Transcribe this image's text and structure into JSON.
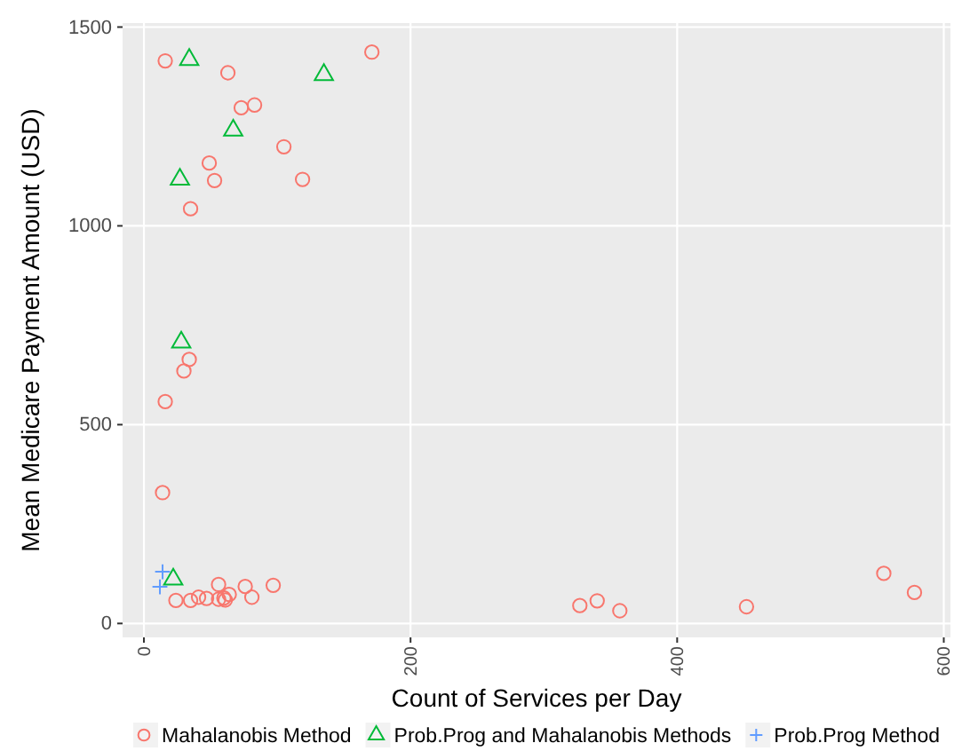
{
  "chart_data": {
    "type": "scatter",
    "xlabel": "Count of Services per Day",
    "ylabel": "Mean Medicare Payment Amount (USD)",
    "xlim": [
      -16,
      605
    ],
    "ylim": [
      -35,
      1510
    ],
    "xticks": [
      0,
      200,
      400,
      600
    ],
    "yticks": [
      0,
      500,
      1000,
      1500
    ],
    "grid": true,
    "legend": "bottom",
    "series": [
      {
        "name": "Mahalanobis Method",
        "color": "#f8766d",
        "marker": "circle",
        "x": [
          16,
          63,
          171,
          73,
          83,
          105,
          49,
          53,
          119,
          35,
          34,
          30,
          16,
          14,
          24,
          35,
          41,
          47,
          56,
          56,
          60,
          61,
          64,
          76,
          81,
          97,
          327,
          340,
          357,
          452,
          555,
          578
        ],
        "values": [
          1415,
          1385,
          1437,
          1297,
          1304,
          1199,
          1158,
          1114,
          1117,
          1043,
          664,
          635,
          558,
          329,
          58,
          58,
          66,
          63,
          98,
          61,
          64,
          59,
          73,
          93,
          66,
          96,
          45,
          57,
          32,
          42,
          126,
          78
        ]
      },
      {
        "name": "Prob.Prog and Mahalanobis Methods",
        "color": "#00ba38",
        "marker": "triangle",
        "x": [
          34,
          135,
          67,
          27,
          28,
          22
        ],
        "values": [
          1418,
          1380,
          1240,
          1117,
          707,
          111
        ]
      },
      {
        "name": "Prob.Prog Method",
        "color": "#619cff",
        "marker": "cross",
        "x": [
          14,
          12
        ],
        "values": [
          130,
          92
        ]
      }
    ]
  }
}
